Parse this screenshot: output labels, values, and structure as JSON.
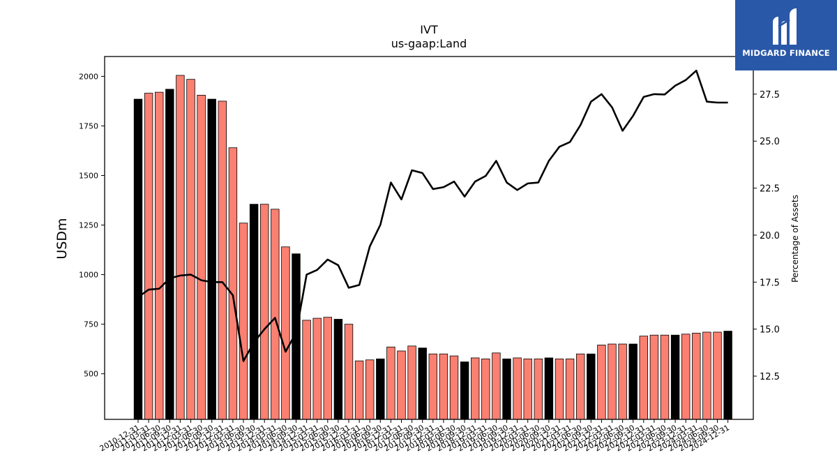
{
  "brand": {
    "name": "MIDGARD FINANCE",
    "bg_color": "#2a58a8"
  },
  "chart_data": {
    "type": "bar+line",
    "title": "IVT",
    "subtitle": "us-gaap:Land",
    "ylabel": "USDm",
    "y2label": "Percentage of Assets",
    "ylim": [
      270,
      2100
    ],
    "y2lim": [
      10.2,
      29.5
    ],
    "yticks": [
      500,
      750,
      1000,
      1250,
      1500,
      1750,
      2000
    ],
    "y2ticks": [
      "12.5",
      "15.0",
      "17.5",
      "20.0",
      "22.5",
      "25.0",
      "27.5"
    ],
    "grid": false,
    "colors": {
      "annual_bar": "#000000",
      "quarter_bar": "#fa8072",
      "line": "#000000"
    },
    "categories": [
      "2010-12-31",
      "2011-03-31",
      "2011-06-30",
      "2011-09-30",
      "2011-12-31",
      "2012-03-31",
      "2012-06-30",
      "2012-09-30",
      "2012-12-31",
      "2013-03-31",
      "2013-06-30",
      "2013-09-30",
      "2013-12-31",
      "2014-03-31",
      "2014-06-30",
      "2014-09-30",
      "2014-12-31",
      "2015-03-31",
      "2015-06-30",
      "2015-09-30",
      "2015-12-31",
      "2016-03-31",
      "2016-06-30",
      "2016-09-30",
      "2016-12-31",
      "2017-03-31",
      "2017-06-30",
      "2017-09-30",
      "2017-12-31",
      "2018-03-31",
      "2018-06-30",
      "2018-09-30",
      "2018-12-31",
      "2019-03-31",
      "2019-06-30",
      "2019-09-30",
      "2019-12-31",
      "2020-03-31",
      "2020-06-30",
      "2020-09-30",
      "2020-12-31",
      "2021-03-31",
      "2021-06-30",
      "2021-09-30",
      "2021-12-31",
      "2022-03-31",
      "2022-06-30",
      "2022-09-30",
      "2022-12-31",
      "2023-03-31",
      "2023-06-30",
      "2023-09-30",
      "2023-12-31",
      "2024-03-31",
      "2024-06-30",
      "2024-09-30",
      "2024-12-31"
    ],
    "annual": [
      true,
      false,
      false,
      true,
      false,
      false,
      false,
      true,
      false,
      false,
      false,
      true,
      false,
      false,
      false,
      true,
      false,
      false,
      false,
      true,
      false,
      false,
      false,
      true,
      false,
      false,
      false,
      true,
      false,
      false,
      false,
      true,
      false,
      false,
      false,
      true,
      false,
      false,
      false,
      true,
      false,
      false,
      false,
      true,
      false,
      false,
      false,
      true,
      false,
      false,
      false,
      true,
      false,
      false,
      false,
      false,
      true
    ],
    "series": [
      {
        "name": "USDm",
        "type": "bar",
        "values": [
          1885,
          1915,
          1920,
          1935,
          2005,
          1985,
          1905,
          1885,
          1875,
          1640,
          1260,
          1355,
          1355,
          1330,
          1140,
          1105,
          770,
          780,
          785,
          775,
          750,
          565,
          570,
          575,
          635,
          615,
          640,
          630,
          600,
          600,
          590,
          560,
          580,
          575,
          605,
          575,
          580,
          575,
          575,
          580,
          575,
          575,
          600,
          600,
          645,
          650,
          650,
          650,
          690,
          695,
          695,
          695,
          700,
          705,
          710,
          710,
          715
        ]
      },
      {
        "name": "Percentage of Assets",
        "type": "line",
        "values": [
          16.7,
          17.1,
          17.15,
          17.7,
          17.85,
          17.9,
          17.6,
          17.5,
          17.5,
          16.8,
          13.3,
          14.3,
          15.0,
          15.6,
          13.8,
          14.8,
          17.9,
          18.15,
          18.7,
          18.4,
          17.2,
          17.35,
          19.4,
          20.55,
          22.8,
          21.9,
          23.45,
          23.3,
          22.45,
          22.55,
          22.85,
          22.05,
          22.85,
          23.15,
          23.95,
          22.8,
          22.4,
          22.75,
          22.8,
          23.95,
          24.7,
          24.95,
          25.85,
          27.1,
          27.5,
          26.8,
          25.55,
          26.35,
          27.35,
          27.5,
          27.48,
          27.95,
          28.25,
          28.75,
          27.1,
          27.05,
          27.05
        ]
      }
    ]
  }
}
